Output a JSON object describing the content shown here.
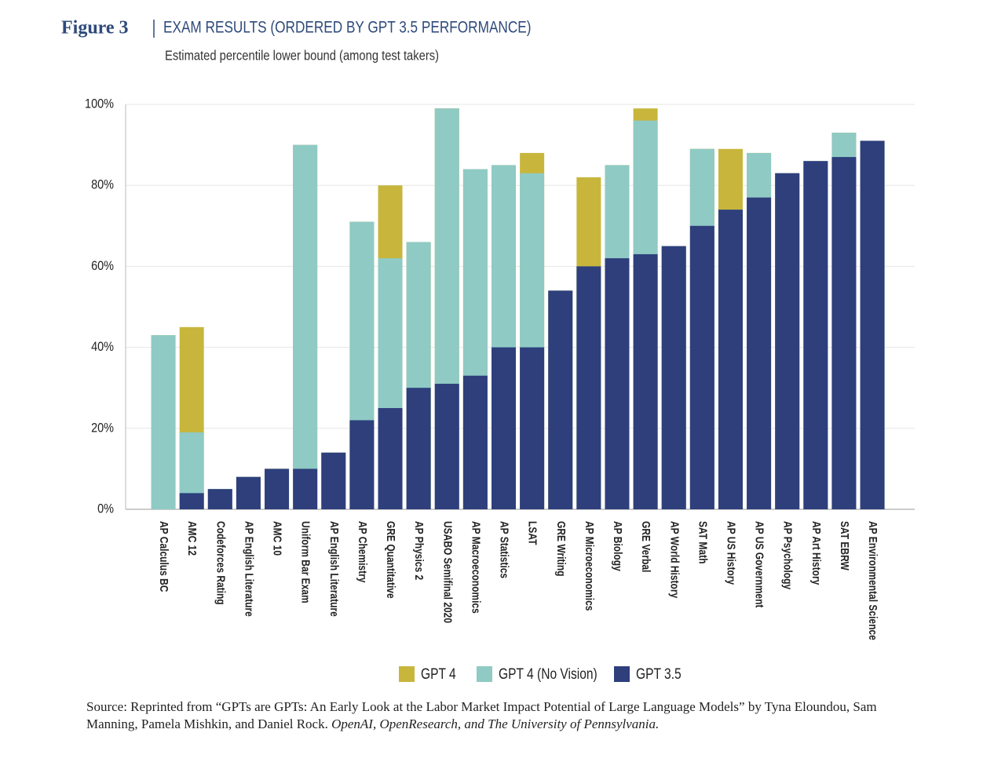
{
  "chart_data": {
    "type": "bar",
    "figure_label": "Figure 3",
    "title": "EXAM RESULTS (ORDERED BY GPT 3.5 PERFORMANCE)",
    "subtitle": "Estimated percentile lower bound (among test takers)",
    "categories": [
      "AP Calculus BC",
      "AMC 12",
      "Codeforces Rating",
      "AP English Literature",
      "AMC 10",
      "Uniform Bar Exam",
      "AP English Literature",
      "AP Chemistry",
      "GRE Quantitative",
      "AP Physics 2",
      "USABO Semifinal 2020",
      "AP Macroeconomics",
      "AP Statistics",
      "LSAT",
      "GRE Writing",
      "AP Microeconomics",
      "AP Biology",
      "GRE Verbal",
      "AP World History",
      "SAT Math",
      "AP US History",
      "AP US Government",
      "AP Psychology",
      "AP Art History",
      "SAT EBRW",
      "AP Environmental Science"
    ],
    "series": [
      {
        "name": "GPT 4",
        "color": "#c8b63c",
        "values": [
          43,
          45,
          5,
          8,
          10,
          90,
          14,
          71,
          80,
          66,
          99,
          84,
          85,
          88,
          54,
          82,
          85,
          99,
          65,
          89,
          89,
          88,
          83,
          86,
          93,
          91
        ]
      },
      {
        "name": "GPT 4 (No Vision)",
        "color": "#8fcac4",
        "values": [
          43,
          19,
          5,
          8,
          10,
          90,
          14,
          71,
          62,
          66,
          99,
          84,
          85,
          83,
          54,
          60,
          85,
          96,
          65,
          89,
          74,
          88,
          83,
          86,
          93,
          91
        ]
      },
      {
        "name": "GPT 3.5",
        "color": "#2e3f7c",
        "values": [
          0,
          4,
          5,
          8,
          10,
          10,
          14,
          22,
          25,
          30,
          31,
          33,
          40,
          40,
          54,
          60,
          62,
          63,
          65,
          70,
          74,
          77,
          83,
          86,
          87,
          91
        ]
      }
    ],
    "ylim": [
      0,
      100
    ],
    "yticks": [
      {
        "value": 0,
        "label": "0%"
      },
      {
        "value": 20,
        "label": "20%"
      },
      {
        "value": 40,
        "label": "40%"
      },
      {
        "value": 60,
        "label": "60%"
      },
      {
        "value": 80,
        "label": "80%"
      },
      {
        "value": 100,
        "label": "100%"
      }
    ],
    "grid": true,
    "source": "Source: Reprinted from “GPTs are GPTs: An Early Look at the Labor Market Impact Potential of Large Language Models” by Tyna Eloundou, Sam Manning, Pamela Mishkin, and Daniel Rock.",
    "source_institutions": "OpenAI, OpenResearch, and The University of Pennsylvania."
  }
}
